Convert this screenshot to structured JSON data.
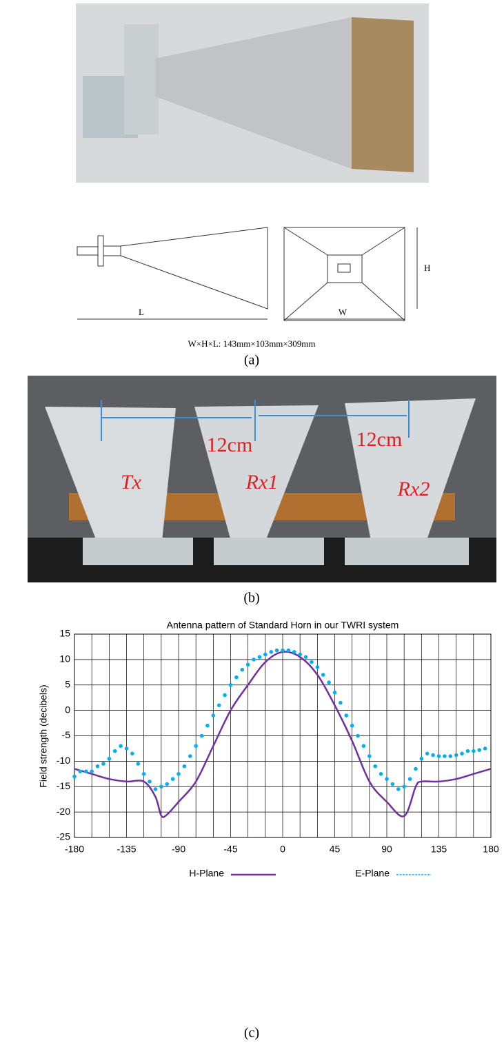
{
  "figure_a": {
    "diagram": {
      "length_label": "L",
      "width_label": "W",
      "height_label": "H",
      "dimensions": "W×H×L: 143mm×103mm×309mm"
    },
    "caption": "(a)"
  },
  "figure_b": {
    "spacing_1": "12cm",
    "spacing_2": "12cm",
    "antenna_1": "Tx",
    "antenna_2": "Rx1",
    "antenna_3": "Rx2",
    "caption": "(b)"
  },
  "chart_data": {
    "type": "line",
    "title": "Antenna pattern of Standard Horn in our TWRI system",
    "y_label": "Field strength (decibels)",
    "xlim": [
      -180,
      180
    ],
    "xticks": [
      -180,
      -135,
      -90,
      -45,
      0,
      45,
      90,
      135,
      180
    ],
    "xgrid": [
      -165,
      -150,
      -120,
      -105,
      -75,
      -60,
      -30,
      -15,
      15,
      30,
      60,
      75,
      105,
      120,
      150,
      165
    ],
    "ylim": [
      -25,
      15
    ],
    "yticks": [
      15,
      10,
      5,
      0,
      -5,
      -10,
      -15,
      -20,
      -25
    ],
    "grid": true,
    "series": [
      {
        "name": "H-Plane",
        "color": "#7030a0",
        "style": "line",
        "x": [
          -180,
          -165,
          -150,
          -135,
          -120,
          -110,
          -105,
          -100,
          -90,
          -75,
          -60,
          -45,
          -30,
          -15,
          0,
          15,
          30,
          45,
          60,
          75,
          90,
          105,
          115,
          120,
          135,
          150,
          165,
          180
        ],
        "values": [
          -11.5,
          -12.5,
          -13.5,
          -14,
          -14,
          -17,
          -20.7,
          -20.5,
          -18,
          -14,
          -7,
          0,
          5,
          9.5,
          11.5,
          10.5,
          7,
          1,
          -6,
          -14,
          -18,
          -20.8,
          -15,
          -14,
          -14,
          -13.5,
          -12.5,
          -11.5
        ]
      },
      {
        "name": "E-Plane",
        "color": "#00b0f0",
        "style": "dots",
        "x": [
          -180,
          -175,
          -170,
          -165,
          -160,
          -155,
          -150,
          -145,
          -140,
          -135,
          -130,
          -125,
          -120,
          -115,
          -110,
          -105,
          -100,
          -95,
          -90,
          -85,
          -80,
          -75,
          -70,
          -65,
          -60,
          -55,
          -50,
          -45,
          -40,
          -35,
          -30,
          -25,
          -20,
          -15,
          -10,
          -5,
          0,
          5,
          10,
          15,
          20,
          25,
          30,
          35,
          40,
          45,
          50,
          55,
          60,
          65,
          70,
          75,
          80,
          85,
          90,
          95,
          100,
          105,
          110,
          115,
          120,
          125,
          130,
          135,
          140,
          145,
          150,
          155,
          160,
          165,
          170,
          175
        ],
        "values": [
          -13,
          -12,
          -12,
          -12,
          -11,
          -10.5,
          -9.5,
          -8,
          -7,
          -7.5,
          -8.5,
          -10.5,
          -12.5,
          -14,
          -15.5,
          -15,
          -14.5,
          -13.5,
          -12.5,
          -11,
          -9,
          -7,
          -5,
          -3,
          -1,
          1,
          3,
          5,
          6.5,
          8,
          9,
          10,
          10.5,
          11,
          11.5,
          11.8,
          11.8,
          11.8,
          11.5,
          11,
          10.5,
          9.5,
          8.5,
          7,
          5.5,
          3.5,
          1.5,
          -1,
          -3,
          -5,
          -7,
          -9,
          -11,
          -12.5,
          -13.5,
          -14.5,
          -15.5,
          -15,
          -13.5,
          -11.5,
          -9.5,
          -8.5,
          -8.8,
          -9,
          -9,
          -9,
          -8.8,
          -8.5,
          -8,
          -8,
          -7.8,
          -7.5
        ]
      }
    ],
    "caption": "(c)"
  }
}
